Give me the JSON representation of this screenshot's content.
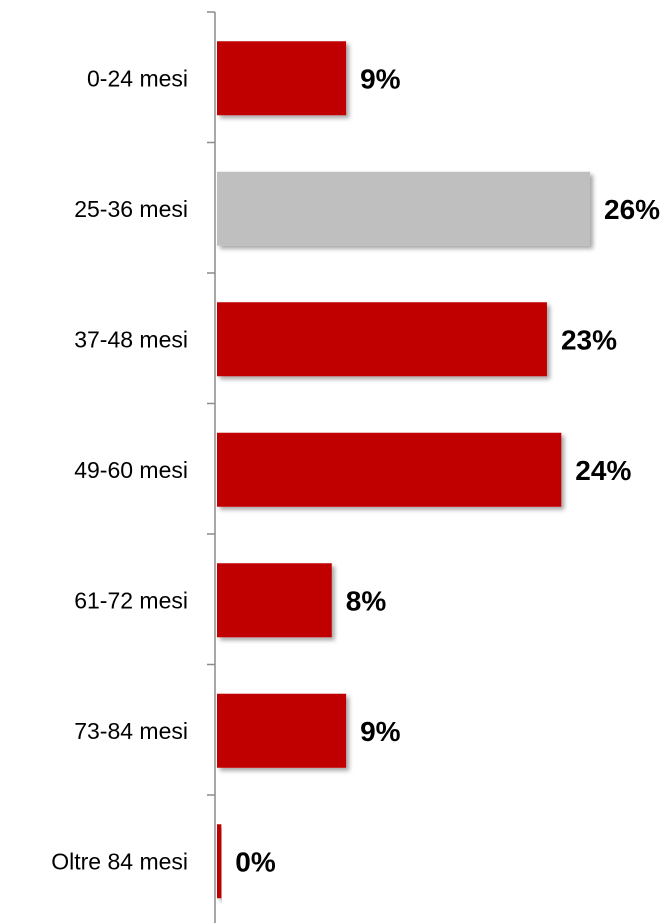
{
  "chart_data": {
    "type": "bar",
    "orientation": "horizontal",
    "categories": [
      "0-24 mesi",
      "25-36 mesi",
      "37-48 mesi",
      "49-60 mesi",
      "61-72 mesi",
      "73-84 mesi",
      "Oltre 84 mesi"
    ],
    "values": [
      9,
      26,
      23,
      24,
      8,
      9,
      0.3
    ],
    "value_labels": [
      "9%",
      "26%",
      "23%",
      "24%",
      "8%",
      "9%",
      "0%"
    ],
    "colors": [
      "#c00000",
      "#bfbfbf",
      "#c00000",
      "#c00000",
      "#c00000",
      "#c00000",
      "#c00000"
    ],
    "highlight_color": "#bfbfbf",
    "bar_color": "#c00000",
    "xlim": [
      0,
      26
    ],
    "title": "",
    "xlabel": "",
    "ylabel": "",
    "grid": false,
    "legend": "none"
  }
}
